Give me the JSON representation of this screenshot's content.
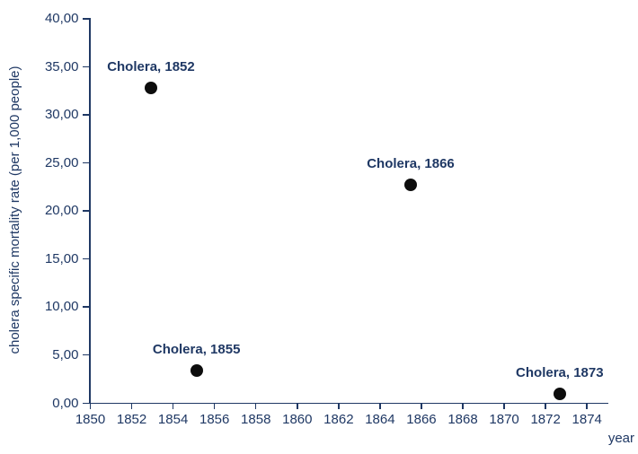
{
  "chart_data": {
    "type": "scatter",
    "title": "",
    "xlabel": "year",
    "ylabel": "cholera specific mortality rate (per 1,000 people)",
    "xlim": [
      1850,
      1875
    ],
    "ylim": [
      0,
      40
    ],
    "grid": false,
    "legend": false,
    "x_ticks": [
      1850,
      1852,
      1854,
      1856,
      1858,
      1860,
      1862,
      1864,
      1866,
      1868,
      1870,
      1872,
      1874
    ],
    "x_tick_labels": [
      "1850",
      "1852",
      "1854",
      "1856",
      "1858",
      "1860",
      "1862",
      "1864",
      "1866",
      "1868",
      "1870",
      "1872",
      "1874"
    ],
    "y_ticks": [
      0,
      5,
      10,
      15,
      20,
      25,
      30,
      35,
      40
    ],
    "y_tick_labels": [
      "0,00",
      "5,00",
      "10,00",
      "15,00",
      "20,00",
      "25,00",
      "30,00",
      "35,00",
      "40,00"
    ],
    "points": [
      {
        "label": "Cholera, 1852",
        "year": 1852,
        "x_plot": 1852.93,
        "value": 32.7
      },
      {
        "label": "Cholera, 1855",
        "year": 1855,
        "x_plot": 1855.13,
        "value": 3.3
      },
      {
        "label": "Cholera, 1866",
        "year": 1866,
        "x_plot": 1865.48,
        "value": 22.6
      },
      {
        "label": "Cholera, 1873",
        "year": 1873,
        "x_plot": 1872.68,
        "value": 0.9
      }
    ],
    "colors": {
      "text": "#1F3864",
      "axis": "#1F3864",
      "marker": "#0D0D0D",
      "background": "#FFFFFF"
    }
  }
}
